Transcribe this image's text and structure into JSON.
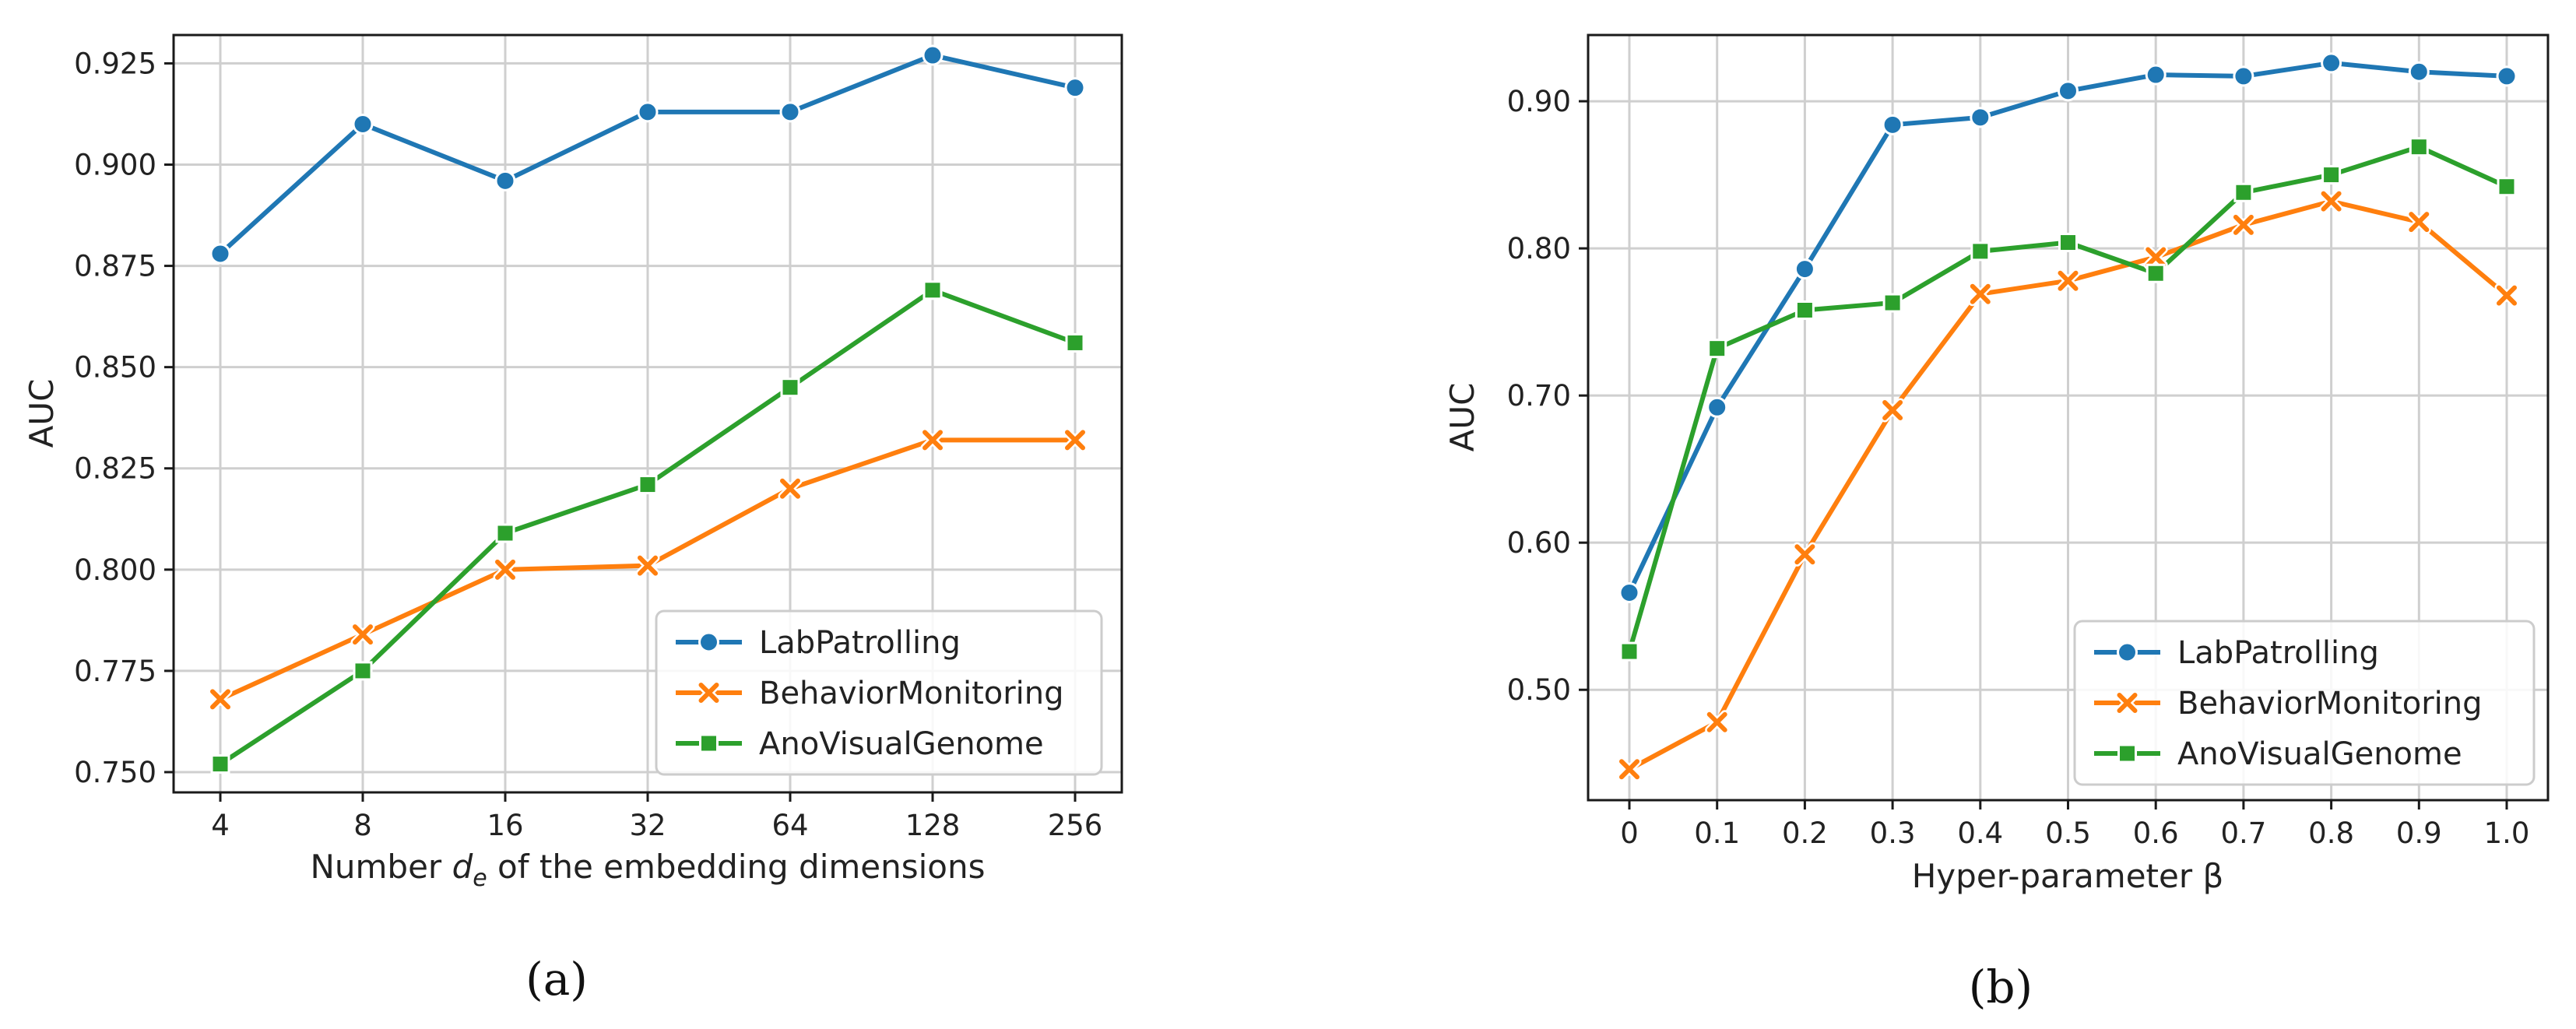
{
  "colors": {
    "LabPatrolling": "#1f77b4",
    "BehaviorMonitoring": "#ff7f0e",
    "AnoVisualGenome": "#2ca02c"
  },
  "chart_data": [
    {
      "type": "line",
      "caption": "(a)",
      "xlabel_parts": [
        "Number ",
        "d",
        "e",
        " of the embedding dimensions"
      ],
      "ylabel": "AUC",
      "categories": [
        "4",
        "8",
        "16",
        "32",
        "64",
        "128",
        "256"
      ],
      "ylim": [
        0.745,
        0.932
      ],
      "yticks": [
        0.75,
        0.775,
        0.8,
        0.825,
        0.85,
        0.875,
        0.9,
        0.925
      ],
      "ytick_labels": [
        "0.750",
        "0.775",
        "0.800",
        "0.825",
        "0.850",
        "0.875",
        "0.900",
        "0.925"
      ],
      "grid": true,
      "legend": "bottom-right",
      "series": [
        {
          "name": "LabPatrolling",
          "marker": "circle",
          "values": [
            0.878,
            0.91,
            0.896,
            0.913,
            0.913,
            0.927,
            0.919
          ]
        },
        {
          "name": "BehaviorMonitoring",
          "marker": "x",
          "values": [
            0.768,
            0.784,
            0.8,
            0.801,
            0.82,
            0.832,
            0.832
          ]
        },
        {
          "name": "AnoVisualGenome",
          "marker": "square",
          "values": [
            0.752,
            0.775,
            0.809,
            0.821,
            0.845,
            0.869,
            0.856
          ]
        }
      ]
    },
    {
      "type": "line",
      "caption": "(b)",
      "xlabel": "Hyper-parameter β",
      "ylabel": "AUC",
      "categories": [
        "0",
        "0.1",
        "0.2",
        "0.3",
        "0.4",
        "0.5",
        "0.6",
        "0.7",
        "0.8",
        "0.9",
        "1.0"
      ],
      "ylim": [
        0.425,
        0.945
      ],
      "yticks": [
        0.5,
        0.6,
        0.7,
        0.8,
        0.9
      ],
      "ytick_labels": [
        "0.50",
        "0.60",
        "0.70",
        "0.80",
        "0.90"
      ],
      "grid": true,
      "legend": "bottom-right",
      "series": [
        {
          "name": "LabPatrolling",
          "marker": "circle",
          "values": [
            0.566,
            0.692,
            0.786,
            0.884,
            0.889,
            0.907,
            0.918,
            0.917,
            0.926,
            0.92,
            0.917
          ]
        },
        {
          "name": "BehaviorMonitoring",
          "marker": "x",
          "values": [
            0.446,
            0.478,
            0.592,
            0.69,
            0.769,
            0.778,
            0.794,
            0.816,
            0.832,
            0.818,
            0.768
          ]
        },
        {
          "name": "AnoVisualGenome",
          "marker": "square",
          "values": [
            0.526,
            0.732,
            0.758,
            0.763,
            0.798,
            0.804,
            0.783,
            0.838,
            0.85,
            0.869,
            0.842
          ]
        }
      ]
    }
  ]
}
